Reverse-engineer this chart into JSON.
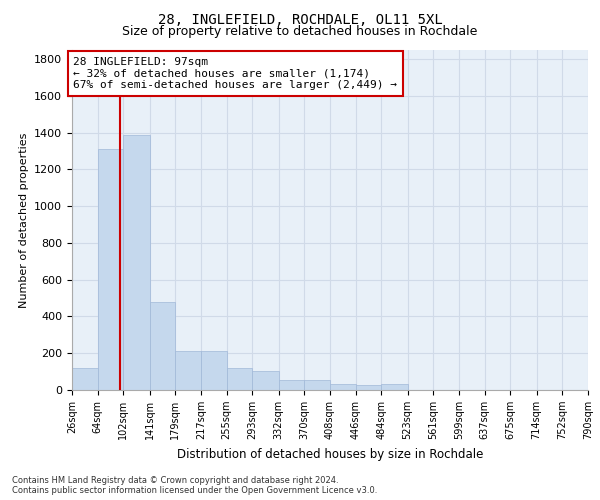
{
  "title1": "28, INGLEFIELD, ROCHDALE, OL11 5XL",
  "title2": "Size of property relative to detached houses in Rochdale",
  "xlabel": "Distribution of detached houses by size in Rochdale",
  "ylabel": "Number of detached properties",
  "bins": [
    26,
    64,
    102,
    141,
    179,
    217,
    255,
    293,
    332,
    370,
    408,
    446,
    484,
    523,
    561,
    599,
    637,
    675,
    714,
    752,
    790
  ],
  "bin_labels": [
    "26sqm",
    "64sqm",
    "102sqm",
    "141sqm",
    "179sqm",
    "217sqm",
    "255sqm",
    "293sqm",
    "332sqm",
    "370sqm",
    "408sqm",
    "446sqm",
    "484sqm",
    "523sqm",
    "561sqm",
    "599sqm",
    "637sqm",
    "675sqm",
    "714sqm",
    "752sqm",
    "790sqm"
  ],
  "bar_heights": [
    120,
    1310,
    1390,
    480,
    210,
    210,
    120,
    105,
    55,
    55,
    30,
    25,
    30,
    0,
    0,
    0,
    0,
    0,
    0,
    0
  ],
  "bar_color": "#c5d8ed",
  "bar_edge_color": "#a0b8d8",
  "property_line_x": 97,
  "property_line_color": "#cc0000",
  "ylim": [
    0,
    1850
  ],
  "yticks": [
    0,
    200,
    400,
    600,
    800,
    1000,
    1200,
    1400,
    1600,
    1800
  ],
  "annotation_text": "28 INGLEFIELD: 97sqm\n← 32% of detached houses are smaller (1,174)\n67% of semi-detached houses are larger (2,449) →",
  "annotation_box_color": "#ffffff",
  "annotation_box_edge": "#cc0000",
  "footnote": "Contains HM Land Registry data © Crown copyright and database right 2024.\nContains public sector information licensed under the Open Government Licence v3.0.",
  "bg_color": "#e8f0f8",
  "grid_color": "#d0dae8"
}
